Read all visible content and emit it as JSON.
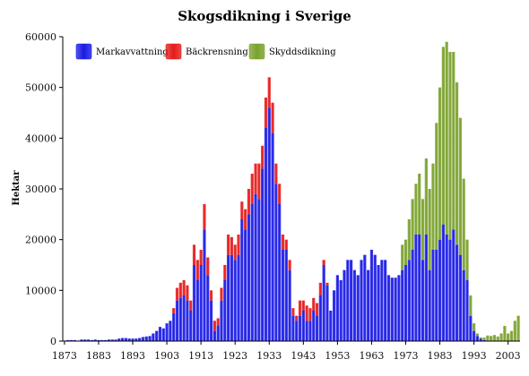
{
  "chart_data": {
    "type": "bar",
    "stacked": true,
    "title": "Skogsdikning i Sverige",
    "xlabel": "",
    "ylabel": "Hektar",
    "ylim": [
      0,
      60000
    ],
    "yticks": [
      0,
      10000,
      20000,
      30000,
      40000,
      50000,
      60000
    ],
    "xlim": [
      1873,
      2007
    ],
    "xticks": [
      1873,
      1883,
      1893,
      1903,
      1913,
      1923,
      1933,
      1943,
      1953,
      1963,
      1973,
      1983,
      1993,
      2003
    ],
    "grid": false,
    "legend_position": "top",
    "colors": {
      "Markavvattning": "#1a1ae6",
      "Bäckrensning": "#e61a1a",
      "Skyddsdikning": "#7aa12c"
    },
    "series": [
      {
        "name": "Markavvattning",
        "points": [
          [
            1873,
            100
          ],
          [
            1874,
            200
          ],
          [
            1875,
            200
          ],
          [
            1876,
            200
          ],
          [
            1877,
            100
          ],
          [
            1878,
            300
          ],
          [
            1879,
            300
          ],
          [
            1880,
            300
          ],
          [
            1881,
            200
          ],
          [
            1882,
            300
          ],
          [
            1883,
            200
          ],
          [
            1884,
            200
          ],
          [
            1885,
            200
          ],
          [
            1886,
            300
          ],
          [
            1887,
            300
          ],
          [
            1888,
            300
          ],
          [
            1889,
            500
          ],
          [
            1890,
            600
          ],
          [
            1891,
            600
          ],
          [
            1892,
            500
          ],
          [
            1893,
            500
          ],
          [
            1894,
            500
          ],
          [
            1895,
            600
          ],
          [
            1896,
            800
          ],
          [
            1897,
            900
          ],
          [
            1898,
            1000
          ],
          [
            1899,
            1500
          ],
          [
            1900,
            2000
          ],
          [
            1901,
            2800
          ],
          [
            1902,
            2500
          ],
          [
            1903,
            3500
          ],
          [
            1904,
            4000
          ],
          [
            1905,
            5500
          ],
          [
            1906,
            8000
          ],
          [
            1907,
            8500
          ],
          [
            1908,
            9000
          ],
          [
            1909,
            8000
          ],
          [
            1910,
            6000
          ],
          [
            1911,
            15000
          ],
          [
            1912,
            12000
          ],
          [
            1913,
            15000
          ],
          [
            1914,
            22000
          ],
          [
            1915,
            13000
          ],
          [
            1916,
            8000
          ],
          [
            1917,
            2000
          ],
          [
            1918,
            3000
          ],
          [
            1919,
            8000
          ],
          [
            1920,
            12000
          ],
          [
            1921,
            17000
          ],
          [
            1922,
            17000
          ],
          [
            1923,
            16000
          ],
          [
            1924,
            17000
          ],
          [
            1925,
            24000
          ],
          [
            1926,
            22000
          ],
          [
            1927,
            25000
          ],
          [
            1928,
            27000
          ],
          [
            1929,
            29000
          ],
          [
            1930,
            28000
          ],
          [
            1931,
            34000
          ],
          [
            1932,
            42000
          ],
          [
            1933,
            46000
          ],
          [
            1934,
            41000
          ],
          [
            1935,
            31000
          ],
          [
            1936,
            27000
          ],
          [
            1937,
            18000
          ],
          [
            1938,
            18000
          ],
          [
            1939,
            14000
          ],
          [
            1940,
            5000
          ],
          [
            1941,
            4000
          ],
          [
            1942,
            5000
          ],
          [
            1943,
            6000
          ],
          [
            1944,
            4000
          ],
          [
            1945,
            4000
          ],
          [
            1946,
            6000
          ],
          [
            1947,
            5000
          ],
          [
            1948,
            9000
          ],
          [
            1949,
            15000
          ],
          [
            1950,
            11000
          ],
          [
            1951,
            6000
          ],
          [
            1952,
            10000
          ],
          [
            1953,
            13000
          ],
          [
            1954,
            12000
          ],
          [
            1955,
            14000
          ],
          [
            1956,
            16000
          ],
          [
            1957,
            16000
          ],
          [
            1958,
            14000
          ],
          [
            1959,
            13000
          ],
          [
            1960,
            16000
          ],
          [
            1961,
            17000
          ],
          [
            1962,
            14000
          ],
          [
            1963,
            18000
          ],
          [
            1964,
            17000
          ],
          [
            1965,
            15000
          ],
          [
            1966,
            16000
          ],
          [
            1967,
            16000
          ],
          [
            1968,
            13000
          ],
          [
            1969,
            12500
          ],
          [
            1970,
            12500
          ],
          [
            1971,
            13000
          ],
          [
            1972,
            14000
          ],
          [
            1973,
            15000
          ],
          [
            1974,
            16000
          ],
          [
            1975,
            18000
          ],
          [
            1976,
            21000
          ],
          [
            1977,
            21000
          ],
          [
            1978,
            16000
          ],
          [
            1979,
            21000
          ],
          [
            1980,
            14000
          ],
          [
            1981,
            18000
          ],
          [
            1982,
            18000
          ],
          [
            1983,
            20000
          ],
          [
            1984,
            23000
          ],
          [
            1985,
            21000
          ],
          [
            1986,
            20000
          ],
          [
            1987,
            22000
          ],
          [
            1988,
            19000
          ],
          [
            1989,
            17000
          ],
          [
            1990,
            14000
          ],
          [
            1991,
            12000
          ],
          [
            1992,
            5000
          ],
          [
            1993,
            2000
          ],
          [
            1994,
            1000
          ],
          [
            1995,
            500
          ],
          [
            1996,
            200
          ],
          [
            1997,
            100
          ],
          [
            1998,
            0
          ],
          [
            1999,
            0
          ],
          [
            2000,
            0
          ],
          [
            2001,
            0
          ],
          [
            2002,
            0
          ],
          [
            2003,
            0
          ],
          [
            2004,
            0
          ],
          [
            2005,
            0
          ],
          [
            2006,
            0
          ]
        ]
      },
      {
        "name": "Bäckrensning",
        "points": [
          [
            1905,
            1000
          ],
          [
            1906,
            2500
          ],
          [
            1907,
            3000
          ],
          [
            1908,
            3000
          ],
          [
            1909,
            3000
          ],
          [
            1910,
            2000
          ],
          [
            1911,
            4000
          ],
          [
            1912,
            4000
          ],
          [
            1913,
            3000
          ],
          [
            1914,
            5000
          ],
          [
            1915,
            3500
          ],
          [
            1916,
            2000
          ],
          [
            1917,
            2000
          ],
          [
            1918,
            1500
          ],
          [
            1919,
            2500
          ],
          [
            1920,
            3000
          ],
          [
            1921,
            4000
          ],
          [
            1922,
            3500
          ],
          [
            1923,
            3000
          ],
          [
            1924,
            4000
          ],
          [
            1925,
            3500
          ],
          [
            1926,
            4000
          ],
          [
            1927,
            5000
          ],
          [
            1928,
            6000
          ],
          [
            1929,
            6000
          ],
          [
            1930,
            7000
          ],
          [
            1931,
            4500
          ],
          [
            1932,
            6000
          ],
          [
            1933,
            6000
          ],
          [
            1934,
            6000
          ],
          [
            1935,
            4000
          ],
          [
            1936,
            4000
          ],
          [
            1937,
            3000
          ],
          [
            1938,
            2000
          ],
          [
            1939,
            2000
          ],
          [
            1940,
            1500
          ],
          [
            1941,
            1000
          ],
          [
            1942,
            3000
          ],
          [
            1943,
            2000
          ],
          [
            1944,
            3000
          ],
          [
            1945,
            2500
          ],
          [
            1946,
            2500
          ],
          [
            1947,
            2500
          ],
          [
            1948,
            2500
          ],
          [
            1949,
            1000
          ],
          [
            1950,
            500
          ]
        ]
      },
      {
        "name": "Skyddsdikning",
        "points": [
          [
            1972,
            5000
          ],
          [
            1973,
            5000
          ],
          [
            1974,
            8000
          ],
          [
            1975,
            10000
          ],
          [
            1976,
            10000
          ],
          [
            1977,
            12000
          ],
          [
            1978,
            12000
          ],
          [
            1979,
            15000
          ],
          [
            1980,
            16000
          ],
          [
            1981,
            17000
          ],
          [
            1982,
            25000
          ],
          [
            1983,
            30000
          ],
          [
            1984,
            35000
          ],
          [
            1985,
            38000
          ],
          [
            1986,
            37000
          ],
          [
            1987,
            35000
          ],
          [
            1988,
            32000
          ],
          [
            1989,
            27000
          ],
          [
            1990,
            18000
          ],
          [
            1991,
            8000
          ],
          [
            1992,
            4000
          ],
          [
            1993,
            1500
          ],
          [
            1994,
            500
          ],
          [
            1995,
            200
          ],
          [
            1996,
            500
          ],
          [
            1997,
            1000
          ],
          [
            1998,
            1000
          ],
          [
            1999,
            1200
          ],
          [
            2000,
            900
          ],
          [
            2001,
            1500
          ],
          [
            2002,
            3000
          ],
          [
            2003,
            1500
          ],
          [
            2004,
            2000
          ],
          [
            2005,
            4000
          ],
          [
            2006,
            5000
          ]
        ]
      }
    ]
  }
}
